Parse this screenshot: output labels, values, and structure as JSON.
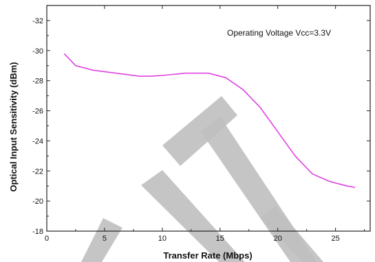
{
  "chart_data": {
    "type": "line",
    "xlabel": "Transfer Rate (Mbps)",
    "ylabel": "Optical Input Sensitivity (dBm)",
    "annotation": "Operating Voltage Vcc=3.3V",
    "xlim": [
      0,
      28
    ],
    "ylim": [
      -18,
      -33
    ],
    "y_axis_inverted": true,
    "x_ticks": [
      0,
      5,
      10,
      15,
      20,
      25
    ],
    "y_ticks": [
      -18,
      -20,
      -22,
      -24,
      -26,
      -28,
      -30,
      -32
    ],
    "grid": false,
    "series": [
      {
        "color": "#e040e0",
        "x": [
          1.5,
          2.5,
          4.0,
          6.0,
          8.0,
          9.0,
          10.0,
          12.0,
          14.0,
          15.5,
          17.0,
          18.5,
          20.0,
          21.5,
          23.0,
          24.5,
          26.0,
          26.7
        ],
        "y": [
          -29.8,
          -29.0,
          -28.7,
          -28.5,
          -28.3,
          -28.3,
          -28.35,
          -28.5,
          -28.5,
          -28.2,
          -27.4,
          -26.2,
          -24.6,
          -23.0,
          -21.8,
          -21.3,
          -21.0,
          -20.9
        ]
      }
    ]
  },
  "watermark_color": "#bfbfbf"
}
